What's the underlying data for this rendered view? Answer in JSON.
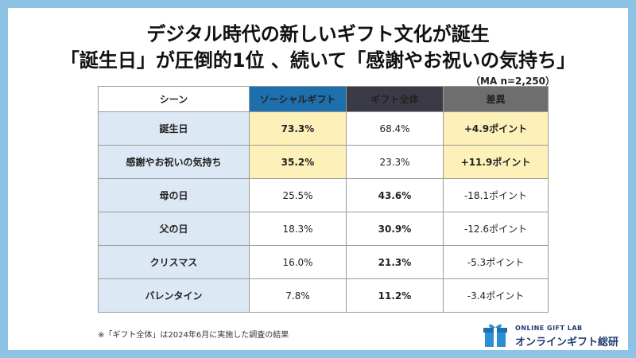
{
  "title": {
    "line1": "デジタル時代の新しいギフト文化が誕生",
    "line2": "「誕生日」が圧倒的1位 、続いて「感謝やお祝いの気持ち」"
  },
  "sample": "（MA n=2,250）",
  "table": {
    "headers": [
      "シーン",
      "ソーシャルギフト",
      "ギフト全体",
      "差異"
    ],
    "rows": [
      {
        "scene": "誕生日",
        "social": "73.3%",
        "all": "68.4%",
        "diff": "+4.9ポイント"
      },
      {
        "scene": "感謝やお祝いの気持ち",
        "social": "35.2%",
        "all": "23.3%",
        "diff": "+11.9ポイント"
      },
      {
        "scene": "母の日",
        "social": "25.5%",
        "all": "43.6%",
        "diff": "-18.1ポイント"
      },
      {
        "scene": "父の日",
        "social": "18.3%",
        "all": "30.9%",
        "diff": "-12.6ポイント"
      },
      {
        "scene": "クリスマス",
        "social": "16.0%",
        "all": "21.3%",
        "diff": "-5.3ポイント"
      },
      {
        "scene": "バレンタイン",
        "social": "7.8%",
        "all": "11.2%",
        "diff": "-3.4ポイント"
      }
    ]
  },
  "note": "※「ギフト全体」は2024年6月に実施した調査の結果",
  "logo": {
    "sub": "ONLINE GIFT LAB",
    "main": "オンラインギフト総研"
  },
  "colors": {
    "frame": "#8fc3e6",
    "header_social": "#1e6fad",
    "header_all": "#3b3b47",
    "header_diff": "#6e6e6e",
    "scene_bg": "#dce8f4",
    "highlight": "#fdf0b9"
  }
}
